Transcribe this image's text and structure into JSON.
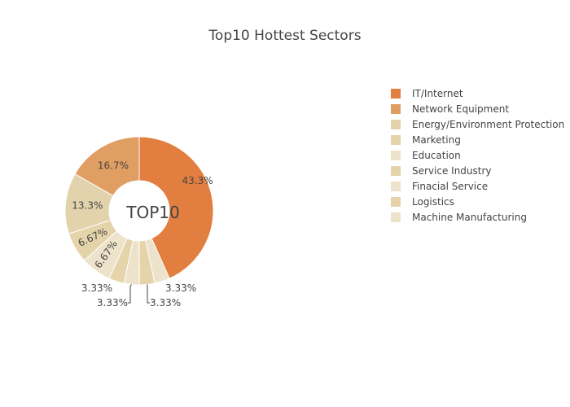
{
  "chart_data": {
    "type": "pie",
    "title": "Top10 Hottest Sectors",
    "center_label": "TOP10",
    "hole": true,
    "legend_position": "right",
    "slices": [
      {
        "name": "IT/Internet",
        "value": 43.3,
        "label": "43.3%",
        "color": "#e27e3f"
      },
      {
        "name": "Machine Manufacturing",
        "value": 3.33,
        "label": "3.33%",
        "color": "#ece3ca"
      },
      {
        "name": "Logistics",
        "value": 3.33,
        "label": "3.33%",
        "color": "#e5d3aa"
      },
      {
        "name": "Finacial Service",
        "value": 3.33,
        "label": "3.33%",
        "color": "#ece3ca"
      },
      {
        "name": "Service Industry",
        "value": 3.33,
        "label": "3.33%",
        "color": "#e5d3aa"
      },
      {
        "name": "Education",
        "value": 6.67,
        "label": "6.67%",
        "color": "#ece3ca"
      },
      {
        "name": "Marketing",
        "value": 6.67,
        "label": "6.67%",
        "color": "#e5d3aa"
      },
      {
        "name": "Energy/Environment Protection",
        "value": 13.3,
        "label": "13.3%",
        "color": "#e3d3ad"
      },
      {
        "name": "Network Equipment",
        "value": 16.7,
        "label": "16.7%",
        "color": "#e09e62"
      }
    ],
    "legend": [
      {
        "name": "IT/Internet",
        "color": "#e27e3f"
      },
      {
        "name": "Network Equipment",
        "color": "#e09e62"
      },
      {
        "name": "Energy/Environment Protection",
        "color": "#e3d3ad"
      },
      {
        "name": "Marketing",
        "color": "#e5d3aa"
      },
      {
        "name": "Education",
        "color": "#ece3ca"
      },
      {
        "name": "Service Industry",
        "color": "#e5d3aa"
      },
      {
        "name": "Finacial Service",
        "color": "#ece3ca"
      },
      {
        "name": "Logistics",
        "color": "#e5d3aa"
      },
      {
        "name": "Machine Manufacturing",
        "color": "#ece3ca"
      }
    ]
  }
}
